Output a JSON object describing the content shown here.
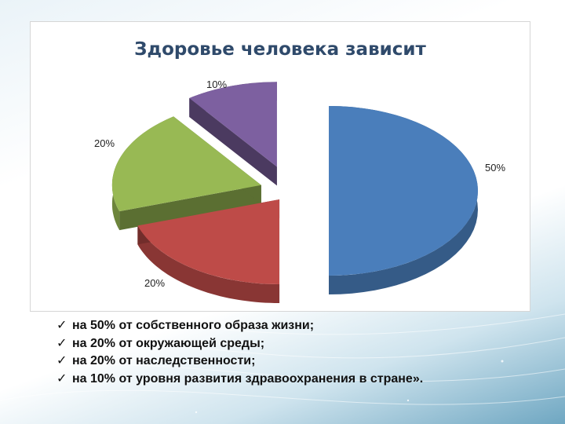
{
  "chart_data": {
    "type": "pie",
    "style": "3d-exploded",
    "title": "Здоровье человека зависит",
    "slices": [
      {
        "value": 50,
        "label": "50%",
        "color": "#4a7ebb"
      },
      {
        "value": 20,
        "label": "20%",
        "color": "#be4b48"
      },
      {
        "value": 20,
        "label": "20%",
        "color": "#98b954"
      },
      {
        "value": 10,
        "label": "10%",
        "color": "#7d60a0"
      }
    ]
  },
  "bullets": [
    "на 50% от собственного образа жизни;",
    "на 20% от окружающей среды;",
    "на 20% от наследственности;",
    "на 10% от уровня развития здравоохранения в стране»."
  ],
  "check_icon": "✓"
}
